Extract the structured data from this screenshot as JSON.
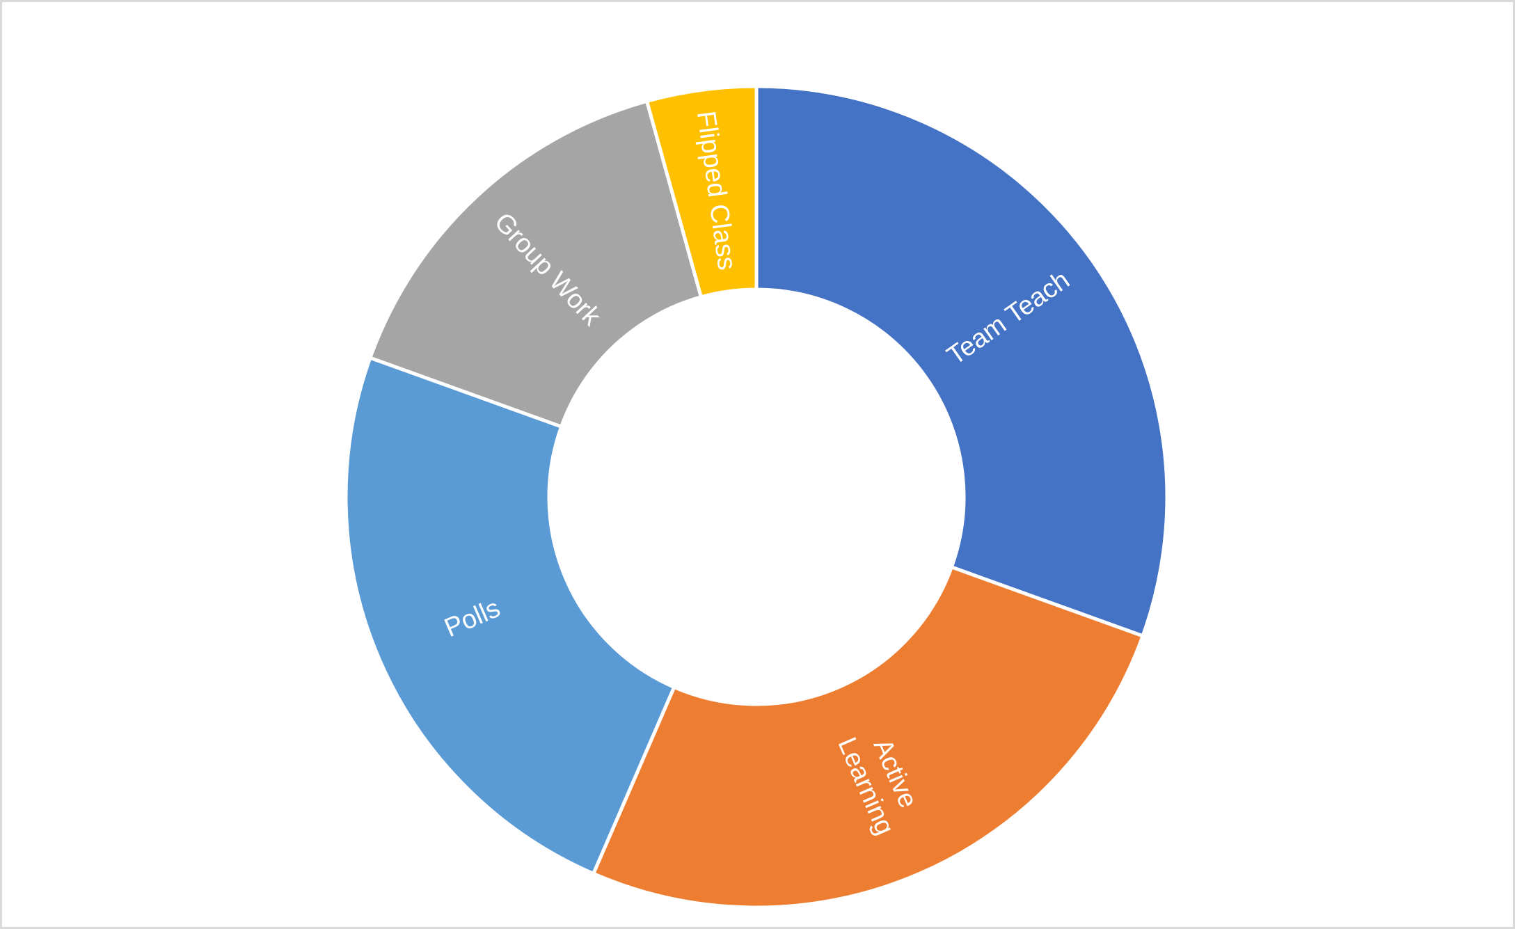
{
  "chart_data": {
    "type": "donut",
    "categories": [
      "Team Teach",
      "Active Learning",
      "Polls",
      "Group Work",
      "Flipped Class"
    ],
    "values": [
      30.5,
      26,
      24,
      15.2,
      4.3
    ],
    "colors": [
      "#4472c4",
      "#ed7d31",
      "#5b9bd5",
      "#a5a5a5",
      "#ffc000"
    ]
  }
}
